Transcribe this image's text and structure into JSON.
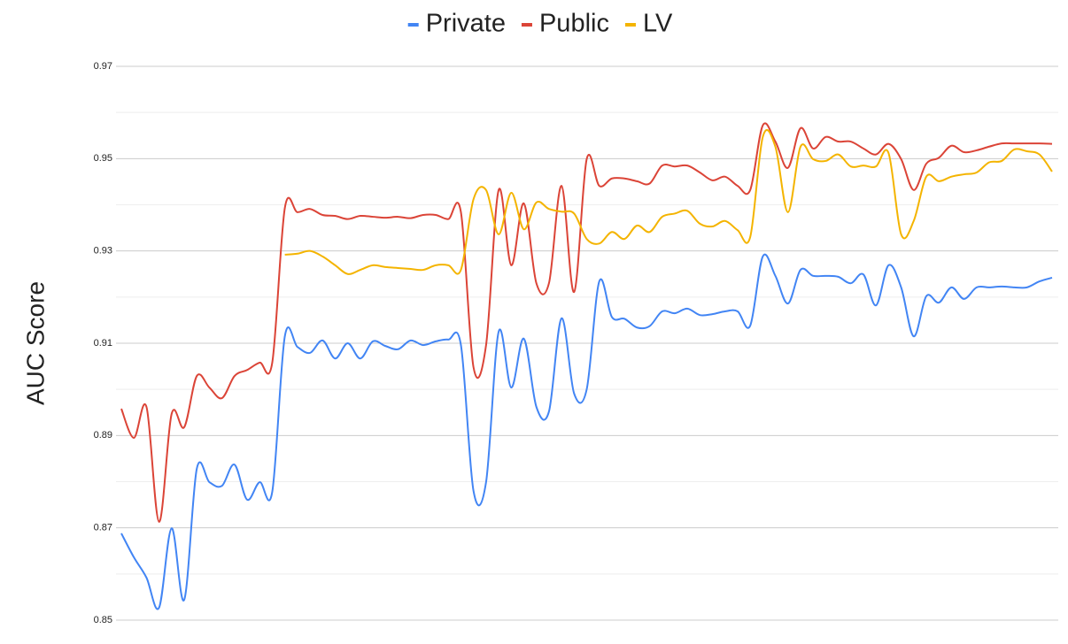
{
  "chart_data": {
    "type": "line",
    "y_label": "AUC Score",
    "categories": [
      null,
      null,
      null,
      null,
      null,
      null,
      null,
      null,
      null,
      null,
      null,
      null,
      null,
      null,
      null,
      null,
      null,
      null,
      null,
      null,
      null,
      null,
      null,
      null,
      null,
      null,
      null,
      null,
      null,
      null,
      null,
      null,
      null,
      null,
      null,
      null,
      null,
      null,
      null,
      null,
      null,
      null,
      null,
      null,
      null,
      null,
      null,
      null,
      null,
      null,
      null,
      null,
      null,
      null,
      null,
      null,
      null,
      null,
      null,
      null,
      null,
      null,
      null,
      null,
      null,
      null,
      null,
      null,
      null,
      null,
      null,
      null,
      null,
      null,
      null
    ],
    "series": [
      {
        "name": "Private",
        "color": "#4285f4",
        "values": [
          0.8688,
          0.8636,
          0.8592,
          0.8527,
          0.8699,
          0.8544,
          0.8828,
          0.8799,
          0.8791,
          0.8837,
          0.8761,
          0.8799,
          0.8778,
          0.9115,
          0.9092,
          0.9079,
          0.9106,
          0.9067,
          0.91,
          0.9067,
          0.9104,
          0.9094,
          0.9087,
          0.9106,
          0.9096,
          0.9104,
          0.9108,
          0.9096,
          0.878,
          0.8799,
          0.9125,
          0.9004,
          0.911,
          0.8962,
          0.8952,
          0.9154,
          0.8991,
          0.9,
          0.9234,
          0.9157,
          0.9153,
          0.9134,
          0.9137,
          0.9169,
          0.9165,
          0.9175,
          0.9161,
          0.9163,
          0.9169,
          0.9169,
          0.9138,
          0.9288,
          0.9246,
          0.9186,
          0.9259,
          0.9246,
          0.9246,
          0.9244,
          0.923,
          0.9249,
          0.9182,
          0.9269,
          0.9221,
          0.9115,
          0.9202,
          0.9188,
          0.9221,
          0.9196,
          0.9221,
          0.9221,
          0.9223,
          0.9221,
          0.9221,
          0.9234,
          0.9242
        ]
      },
      {
        "name": "Public",
        "color": "#db4437",
        "values": [
          0.8958,
          0.8895,
          0.8962,
          0.8713,
          0.8947,
          0.8918,
          0.9029,
          0.9004,
          0.8981,
          0.9029,
          0.9042,
          0.9058,
          0.9058,
          0.9393,
          0.9384,
          0.9391,
          0.9378,
          0.9376,
          0.9369,
          0.9376,
          0.9374,
          0.9372,
          0.9374,
          0.9371,
          0.9378,
          0.9378,
          0.9369,
          0.9384,
          0.9048,
          0.9096,
          0.9432,
          0.9269,
          0.9403,
          0.923,
          0.923,
          0.9441,
          0.9211,
          0.9499,
          0.9441,
          0.9457,
          0.9457,
          0.9451,
          0.9446,
          0.9485,
          0.9483,
          0.9485,
          0.947,
          0.9453,
          0.9461,
          0.9441,
          0.9432,
          0.9572,
          0.9537,
          0.948,
          0.9566,
          0.9522,
          0.9547,
          0.9537,
          0.9537,
          0.9522,
          0.9509,
          0.9532,
          0.9499,
          0.9432,
          0.9489,
          0.9502,
          0.9528,
          0.9514,
          0.9518,
          0.9526,
          0.9533,
          0.9533,
          0.9533,
          0.9533,
          0.9532
        ]
      },
      {
        "name": "LV",
        "color": "#f4b400",
        "values": [
          null,
          null,
          null,
          null,
          null,
          null,
          null,
          null,
          null,
          null,
          null,
          null,
          null,
          0.9292,
          0.9294,
          0.93,
          0.9288,
          0.9269,
          0.925,
          0.9259,
          0.9269,
          0.9265,
          0.9263,
          0.9261,
          0.9259,
          0.9269,
          0.9269,
          0.9259,
          0.9412,
          0.9432,
          0.9336,
          0.9426,
          0.9347,
          0.9405,
          0.9391,
          0.9385,
          0.9381,
          0.9326,
          0.9316,
          0.9341,
          0.9326,
          0.9355,
          0.9341,
          0.9374,
          0.9381,
          0.9387,
          0.9359,
          0.9353,
          0.9365,
          0.9345,
          0.933,
          0.9547,
          0.9526,
          0.9384,
          0.9526,
          0.9499,
          0.9495,
          0.9509,
          0.9483,
          0.9485,
          0.9483,
          0.9512,
          0.9336,
          0.9365,
          0.9461,
          0.9451,
          0.9461,
          0.9466,
          0.947,
          0.9492,
          0.9495,
          0.952,
          0.9516,
          0.9509,
          0.9472
        ]
      }
    ],
    "ylim": [
      0.85,
      0.97
    ],
    "yticks": [
      0.85,
      0.87,
      0.89,
      0.91,
      0.93,
      0.95,
      0.97
    ],
    "grid": true,
    "minor_grid": true,
    "legend": "top"
  }
}
